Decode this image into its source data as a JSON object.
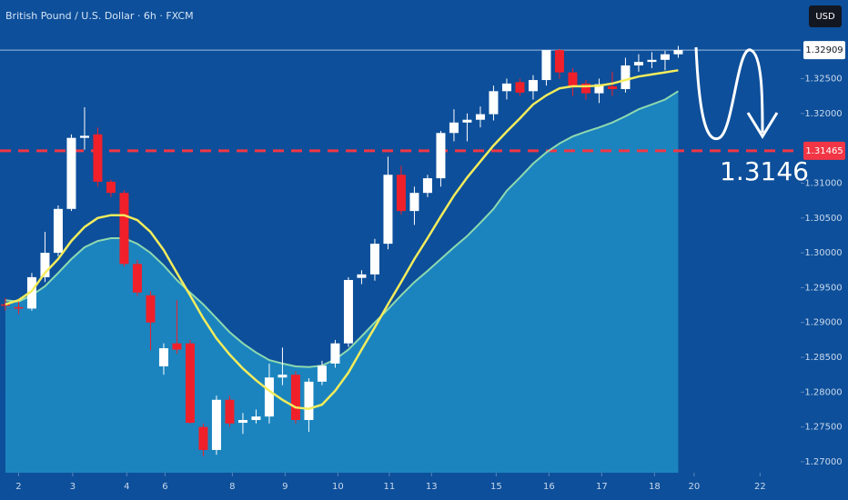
{
  "chart_data": {
    "type": "candlestick",
    "title": "British Pound / U.S. Dollar · 6h · FXCM",
    "currency": "USD",
    "up_color": "#ffffff",
    "down_color": "#f0202a",
    "ylim": [
      1.26843,
      1.33629
    ],
    "xlim": [
      -0.41,
      60.28
    ],
    "yticks": [
      {
        "value": 1.325,
        "label": "1.32500"
      },
      {
        "value": 1.32,
        "label": "1.32000"
      },
      {
        "value": 1.31,
        "label": "1.31000"
      },
      {
        "value": 1.305,
        "label": "1.30500"
      },
      {
        "value": 1.3,
        "label": "1.30000"
      },
      {
        "value": 1.295,
        "label": "1.29500"
      },
      {
        "value": 1.29,
        "label": "1.29000"
      },
      {
        "value": 1.285,
        "label": "1.28500"
      },
      {
        "value": 1.28,
        "label": "1.28000"
      },
      {
        "value": 1.275,
        "label": "1.27500"
      },
      {
        "value": 1.27,
        "label": "1.27000"
      }
    ],
    "xticks": [
      {
        "value": 1,
        "label": "2"
      },
      {
        "value": 5.1,
        "label": "3"
      },
      {
        "value": 9.2,
        "label": "4"
      },
      {
        "value": 12.1,
        "label": "6"
      },
      {
        "value": 17.2,
        "label": "8"
      },
      {
        "value": 21.2,
        "label": "9"
      },
      {
        "value": 25.2,
        "label": "10"
      },
      {
        "value": 29.1,
        "label": "11"
      },
      {
        "value": 32.3,
        "label": "13"
      },
      {
        "value": 37.2,
        "label": "15"
      },
      {
        "value": 41.2,
        "label": "16"
      },
      {
        "value": 45.2,
        "label": "17"
      },
      {
        "value": 49.2,
        "label": "18"
      },
      {
        "value": 52.2,
        "label": "20"
      },
      {
        "value": 57.2,
        "label": "22"
      }
    ],
    "ohlc": [
      [
        1.2926,
        1.2935,
        1.2917,
        1.2924
      ],
      [
        1.2922,
        1.293,
        1.2912,
        1.292
      ],
      [
        1.292,
        1.2971,
        1.2917,
        1.2965
      ],
      [
        1.2965,
        1.303,
        1.2958,
        1.3
      ],
      [
        1.3,
        1.3068,
        1.2995,
        1.3063
      ],
      [
        1.3063,
        1.317,
        1.306,
        1.3165
      ],
      [
        1.3165,
        1.3209,
        1.3148,
        1.3168
      ],
      [
        1.317,
        1.318,
        1.3095,
        1.3102
      ],
      [
        1.3102,
        1.3105,
        1.308,
        1.3086
      ],
      [
        1.3086,
        1.309,
        1.298,
        1.2984
      ],
      [
        1.2984,
        1.299,
        1.2938,
        1.2943
      ],
      [
        1.2939,
        1.2945,
        1.286,
        1.29
      ],
      [
        1.2837,
        1.287,
        1.2825,
        1.2863
      ],
      [
        1.287,
        1.2932,
        1.2855,
        1.2861
      ],
      [
        1.287,
        1.2875,
        1.2755,
        1.2756
      ],
      [
        1.275,
        1.2755,
        1.2708,
        1.2717
      ],
      [
        1.2717,
        1.2795,
        1.271,
        1.2789
      ],
      [
        1.2789,
        1.2795,
        1.275,
        1.2755
      ],
      [
        1.2756,
        1.277,
        1.274,
        1.276
      ],
      [
        1.276,
        1.2775,
        1.2755,
        1.2765
      ],
      [
        1.2765,
        1.2841,
        1.2755,
        1.2821
      ],
      [
        1.2821,
        1.2864,
        1.281,
        1.2825
      ],
      [
        1.2825,
        1.283,
        1.2755,
        1.276
      ],
      [
        1.276,
        1.282,
        1.2743,
        1.2815
      ],
      [
        1.2815,
        1.2845,
        1.281,
        1.2838
      ],
      [
        1.2841,
        1.2875,
        1.2835,
        1.287
      ],
      [
        1.287,
        1.2965,
        1.2865,
        1.2961
      ],
      [
        1.2964,
        1.2975,
        1.2955,
        1.2969
      ],
      [
        1.2969,
        1.302,
        1.296,
        1.3013
      ],
      [
        1.3013,
        1.3138,
        1.3005,
        1.3112
      ],
      [
        1.3112,
        1.3125,
        1.3055,
        1.306
      ],
      [
        1.306,
        1.3095,
        1.304,
        1.3086
      ],
      [
        1.3086,
        1.3112,
        1.308,
        1.3107
      ],
      [
        1.3107,
        1.3175,
        1.3095,
        1.3172
      ],
      [
        1.3172,
        1.3206,
        1.316,
        1.3187
      ],
      [
        1.3187,
        1.32,
        1.316,
        1.3191
      ],
      [
        1.3191,
        1.321,
        1.318,
        1.3199
      ],
      [
        1.3199,
        1.324,
        1.319,
        1.3232
      ],
      [
        1.3232,
        1.325,
        1.322,
        1.3243
      ],
      [
        1.3245,
        1.325,
        1.3225,
        1.323
      ],
      [
        1.3232,
        1.3255,
        1.322,
        1.3248
      ],
      [
        1.3248,
        1.3291,
        1.324,
        1.3291
      ],
      [
        1.3291,
        1.3293,
        1.325,
        1.3259
      ],
      [
        1.3259,
        1.3265,
        1.3225,
        1.3239
      ],
      [
        1.3243,
        1.3248,
        1.322,
        1.3229
      ],
      [
        1.3229,
        1.325,
        1.3215,
        1.3242
      ],
      [
        1.3239,
        1.326,
        1.3225,
        1.3235
      ],
      [
        1.3235,
        1.328,
        1.323,
        1.3269
      ],
      [
        1.3269,
        1.3285,
        1.326,
        1.3274
      ],
      [
        1.3274,
        1.3288,
        1.3265,
        1.3277
      ],
      [
        1.3277,
        1.329,
        1.3262,
        1.3285
      ],
      [
        1.3285,
        1.3297,
        1.328,
        1.3291
      ]
    ],
    "lines": [
      {
        "color": "#8fd9b0",
        "area_color": "#1f8dc4",
        "values": [
          1.2932,
          1.293,
          1.2939,
          1.2952,
          1.2971,
          1.2991,
          1.3008,
          1.3017,
          1.3021,
          1.3021,
          1.3013,
          1.3,
          1.2982,
          1.2961,
          1.2943,
          1.2926,
          1.2906,
          1.2886,
          1.287,
          1.2857,
          1.2846,
          1.2841,
          1.2837,
          1.2836,
          1.2838,
          1.2847,
          1.2861,
          1.288,
          1.29,
          1.2919,
          1.2939,
          1.2958,
          1.2974,
          1.2991,
          1.3008,
          1.3024,
          1.3043,
          1.3063,
          1.3089,
          1.3108,
          1.3128,
          1.3144,
          1.3157,
          1.3167,
          1.3174,
          1.318,
          1.3187,
          1.3196,
          1.3206,
          1.3213,
          1.322,
          1.3232
        ]
      },
      {
        "color": "#f3ec5c",
        "values": [
          1.2926,
          1.2932,
          1.2945,
          1.2971,
          1.2991,
          1.3017,
          1.3037,
          1.305,
          1.3054,
          1.3054,
          1.3047,
          1.303,
          1.3004,
          1.2971,
          1.2939,
          1.2906,
          1.2877,
          1.2854,
          1.2834,
          1.2817,
          1.2802,
          1.2789,
          1.2778,
          1.2776,
          1.2782,
          1.2802,
          1.2828,
          1.2861,
          1.2893,
          1.2926,
          1.2958,
          1.2991,
          1.3021,
          1.3052,
          1.3082,
          1.3108,
          1.3131,
          1.3154,
          1.3174,
          1.3193,
          1.3213,
          1.3226,
          1.3236,
          1.3239,
          1.3239,
          1.324,
          1.3243,
          1.3248,
          1.3253,
          1.3256,
          1.3259,
          1.3262
        ]
      }
    ],
    "level": {
      "value": 1.31465,
      "label": "1.31465",
      "color": "#f23645"
    },
    "last_price": {
      "value": 1.32909,
      "label": "1.32909"
    },
    "annotation": "1.3146"
  }
}
